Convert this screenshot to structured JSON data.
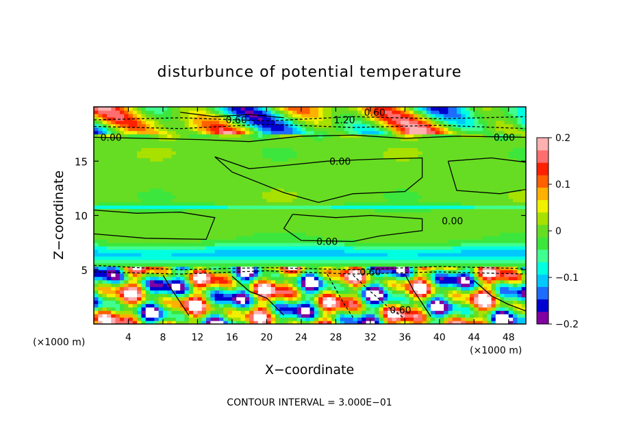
{
  "chart_data": {
    "type": "heatmap",
    "title": "disturbunce of potential temperature",
    "xlabel": "X−coordinate",
    "ylabel": "Z−coordinate",
    "x_unit": "(×1000 m)",
    "y_unit": "(×1000 m)",
    "xlim": [
      0,
      50
    ],
    "ylim": [
      0,
      20
    ],
    "x_ticks": [
      4,
      8,
      12,
      16,
      20,
      24,
      28,
      32,
      36,
      40,
      44,
      48
    ],
    "y_ticks": [
      5,
      10,
      15
    ],
    "colorbar": {
      "range": [
        -0.2,
        0.2
      ],
      "ticks": [
        0.2,
        0.1,
        0,
        -0.1,
        -0.2
      ],
      "tick_labels": [
        "0.2",
        "0.1",
        "0",
        "−0.1",
        "−0.2"
      ],
      "colors": [
        "#8000a0",
        "#0000d0",
        "#1e6bff",
        "#00c8ff",
        "#00ffe0",
        "#40ff90",
        "#3ce63c",
        "#66dd22",
        "#a8e000",
        "#f0f000",
        "#ffb000",
        "#ff6000",
        "#ff2000",
        "#ff6e6e",
        "#ffb0b0"
      ]
    },
    "contour_labels": [
      {
        "text": "0.00",
        "x": 2.0,
        "z": 17.2
      },
      {
        "text": "0.00",
        "x": 28.5,
        "z": 15.0
      },
      {
        "text": "0.00",
        "x": 27.0,
        "z": 7.6
      },
      {
        "text": "0.00",
        "x": 41.5,
        "z": 9.5
      },
      {
        "text": "0.00",
        "x": 47.5,
        "z": 17.2
      },
      {
        "text": "1.20",
        "x": 29.0,
        "z": 18.8
      },
      {
        "text": "0.60",
        "x": 32.0,
        "z": 4.8
      },
      {
        "text": "0.60",
        "x": 35.5,
        "z": 1.3
      },
      {
        "text": "0.60",
        "x": 16.5,
        "z": 18.8
      },
      {
        "text": "0.60",
        "x": 32.5,
        "z": 19.5
      }
    ],
    "contour_interval_text": "CONTOUR INTERVAL = 3.000E−01",
    "grid": false,
    "legend": "right"
  }
}
